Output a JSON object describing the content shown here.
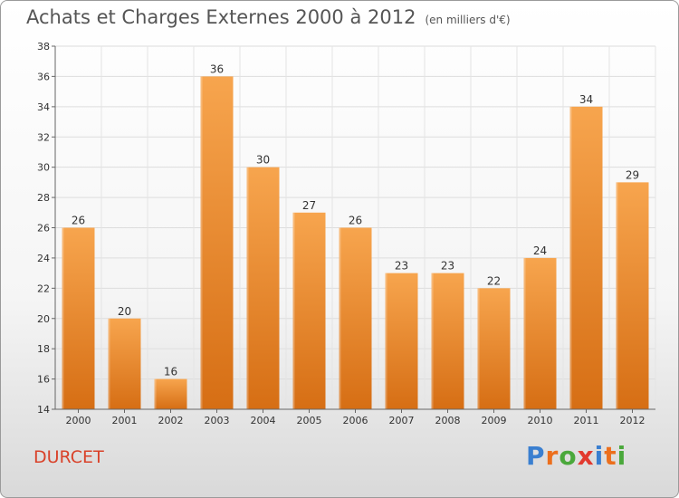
{
  "header": {
    "title": "Achats et Charges Externes 2000 à 2012",
    "unit": "(en milliers d'€)"
  },
  "footer": {
    "commune": "DURCET",
    "logo_text": "Proxiti"
  },
  "colors": {
    "bar_light": "#f7a54e",
    "bar_dark": "#d66e14",
    "commune": "#d9422a",
    "logo": [
      "#3a7fd0",
      "#ec6f1d",
      "#4aa83b",
      "#e23a2f",
      "#3a7fd0",
      "#ec6f1d",
      "#4aa83b"
    ]
  },
  "chart_data": {
    "type": "bar",
    "title": "Achats et Charges Externes 2000 à 2012",
    "subtitle": "(en milliers d'€)",
    "categories": [
      "2000",
      "2001",
      "2002",
      "2003",
      "2004",
      "2005",
      "2006",
      "2007",
      "2008",
      "2009",
      "2010",
      "2011",
      "2012"
    ],
    "values": [
      26,
      20,
      16,
      36,
      30,
      27,
      26,
      23,
      23,
      22,
      24,
      34,
      29
    ],
    "ylim": [
      14,
      38
    ],
    "yticks": [
      14,
      16,
      18,
      20,
      22,
      24,
      26,
      28,
      30,
      32,
      34,
      36,
      38
    ],
    "grid": true,
    "legend": "none"
  }
}
